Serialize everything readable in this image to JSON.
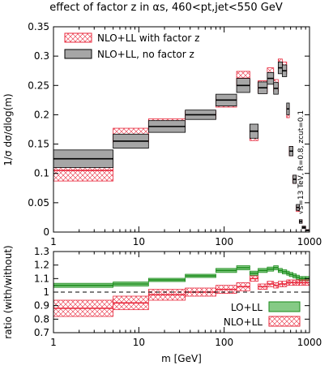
{
  "chart_data": [
    {
      "type": "area",
      "panel": "main",
      "title": "effect of factor z in αs, 460<pt,jet<550 GeV",
      "xlabel": "",
      "ylabel": "1/σ dσ/dlog(m)",
      "xscale": "log",
      "xlim": [
        1,
        1000
      ],
      "ylim": [
        0,
        0.35
      ],
      "grid": false,
      "legend": "top-left",
      "annotation": "√s=13 TeV, R=0.8, zcut=0.1",
      "x_ticks": [
        "1",
        "10",
        "100",
        "1000"
      ],
      "y_ticks": [
        "0",
        "0.05",
        "0.1",
        "0.15",
        "0.2",
        "0.25",
        "0.3",
        "0.35"
      ],
      "y_tick_values": [
        0,
        0.05,
        0.1,
        0.15,
        0.2,
        0.25,
        0.3,
        0.35
      ],
      "bin_edges": [
        1,
        5,
        13,
        35,
        80,
        140,
        200,
        250,
        320,
        380,
        430,
        480,
        540,
        580,
        640,
        700,
        760,
        820,
        900,
        1000
      ],
      "series": [
        {
          "name": "NLO+LL with factor z",
          "style": "hatched-red",
          "values": [
            0.105,
            0.165,
            0.185,
            0.2,
            0.222,
            0.262,
            0.168,
            0.248,
            0.27,
            0.25,
            0.285,
            0.28,
            0.205,
            0.138,
            0.09,
            0.04,
            0.018,
            0.008,
            0.003
          ],
          "err": [
            0.018,
            0.012,
            0.008,
            0.006,
            0.009,
            0.012,
            0.012,
            0.01,
            0.01,
            0.01,
            0.01,
            0.01,
            0.01,
            0.008,
            0.007,
            0.005,
            0.003,
            0.002,
            0.001
          ]
        },
        {
          "name": "NLO+LL, no factor z",
          "style": "grey",
          "values": [
            0.125,
            0.155,
            0.18,
            0.2,
            0.225,
            0.25,
            0.172,
            0.246,
            0.262,
            0.245,
            0.28,
            0.275,
            0.21,
            0.138,
            0.09,
            0.042,
            0.018,
            0.008,
            0.003
          ],
          "err": [
            0.015,
            0.012,
            0.01,
            0.008,
            0.01,
            0.012,
            0.012,
            0.01,
            0.01,
            0.01,
            0.01,
            0.01,
            0.01,
            0.008,
            0.007,
            0.005,
            0.003,
            0.002,
            0.001
          ]
        }
      ]
    },
    {
      "type": "area",
      "panel": "ratio",
      "xlabel": "m [GeV]",
      "ylabel": "ratio (with/without)",
      "xscale": "log",
      "xlim": [
        1,
        1000
      ],
      "ylim": [
        0.7,
        1.3
      ],
      "reference_line": 1,
      "legend": "bottom-right",
      "x_ticks": [
        "1",
        "10",
        "100",
        "1000"
      ],
      "y_ticks": [
        "0.7",
        "0.8",
        "0.9",
        "1",
        "1.1",
        "1.2",
        "1.3"
      ],
      "y_tick_values": [
        0.7,
        0.8,
        0.9,
        1.0,
        1.1,
        1.2,
        1.3
      ],
      "bin_edges": [
        1,
        5,
        13,
        35,
        80,
        140,
        200,
        250,
        320,
        380,
        430,
        480,
        540,
        580,
        640,
        700,
        760,
        820,
        900,
        1000
      ],
      "series": [
        {
          "name": "LO+LL",
          "style": "green",
          "values": [
            1.05,
            1.06,
            1.09,
            1.12,
            1.16,
            1.18,
            1.14,
            1.16,
            1.17,
            1.18,
            1.16,
            1.15,
            1.14,
            1.13,
            1.12,
            1.11,
            1.1,
            1.1,
            1.1
          ],
          "err": [
            0.015,
            0.015,
            0.012,
            0.012,
            0.015,
            0.015,
            0.015,
            0.015,
            0.015,
            0.015,
            0.015,
            0.015,
            0.015,
            0.015,
            0.015,
            0.015,
            0.015,
            0.015,
            0.015
          ]
        },
        {
          "name": "NLO+LL",
          "style": "hatched-red",
          "values": [
            0.88,
            0.92,
            0.98,
            1.0,
            1.02,
            1.04,
            1.1,
            1.04,
            1.06,
            1.05,
            1.06,
            1.06,
            1.07,
            1.07,
            1.07,
            1.07,
            1.07,
            1.07,
            1.07
          ],
          "err": [
            0.06,
            0.05,
            0.04,
            0.03,
            0.03,
            0.03,
            0.02,
            0.02,
            0.02,
            0.02,
            0.02,
            0.02,
            0.02,
            0.02,
            0.02,
            0.02,
            0.02,
            0.02,
            0.02
          ]
        }
      ]
    }
  ]
}
